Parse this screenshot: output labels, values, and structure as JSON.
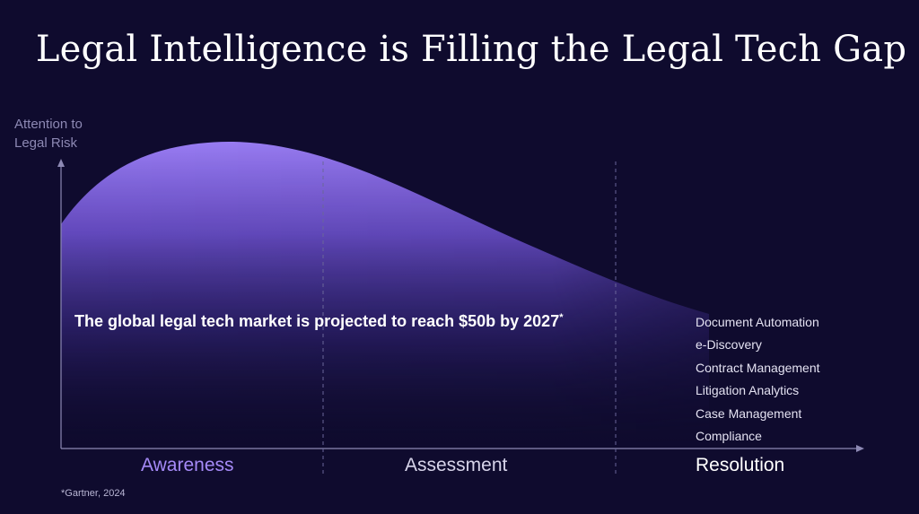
{
  "slide": {
    "title": "Legal Intelligence is Filling the Legal Tech Gap",
    "y_axis_label": "Attention to Legal Risk",
    "headline": "The global legal tech market is projected to reach $50b by 2027",
    "headline_marker": "*",
    "stages": [
      {
        "label": "Awareness",
        "color": "#a58af7"
      },
      {
        "label": "Assessment",
        "color": "#d7d4ea"
      },
      {
        "label": "Resolution",
        "color": "#ffffff"
      }
    ],
    "tools": [
      "Document Automation",
      "e-Discovery",
      "Contract Management",
      "Litigation Analytics",
      "Case Management",
      "Compliance"
    ],
    "footnote": "*Gartner, 2024"
  },
  "colors": {
    "background": "#0f0b2e",
    "curve_top": "#9a7cf4",
    "axis": "#8d89b4"
  }
}
